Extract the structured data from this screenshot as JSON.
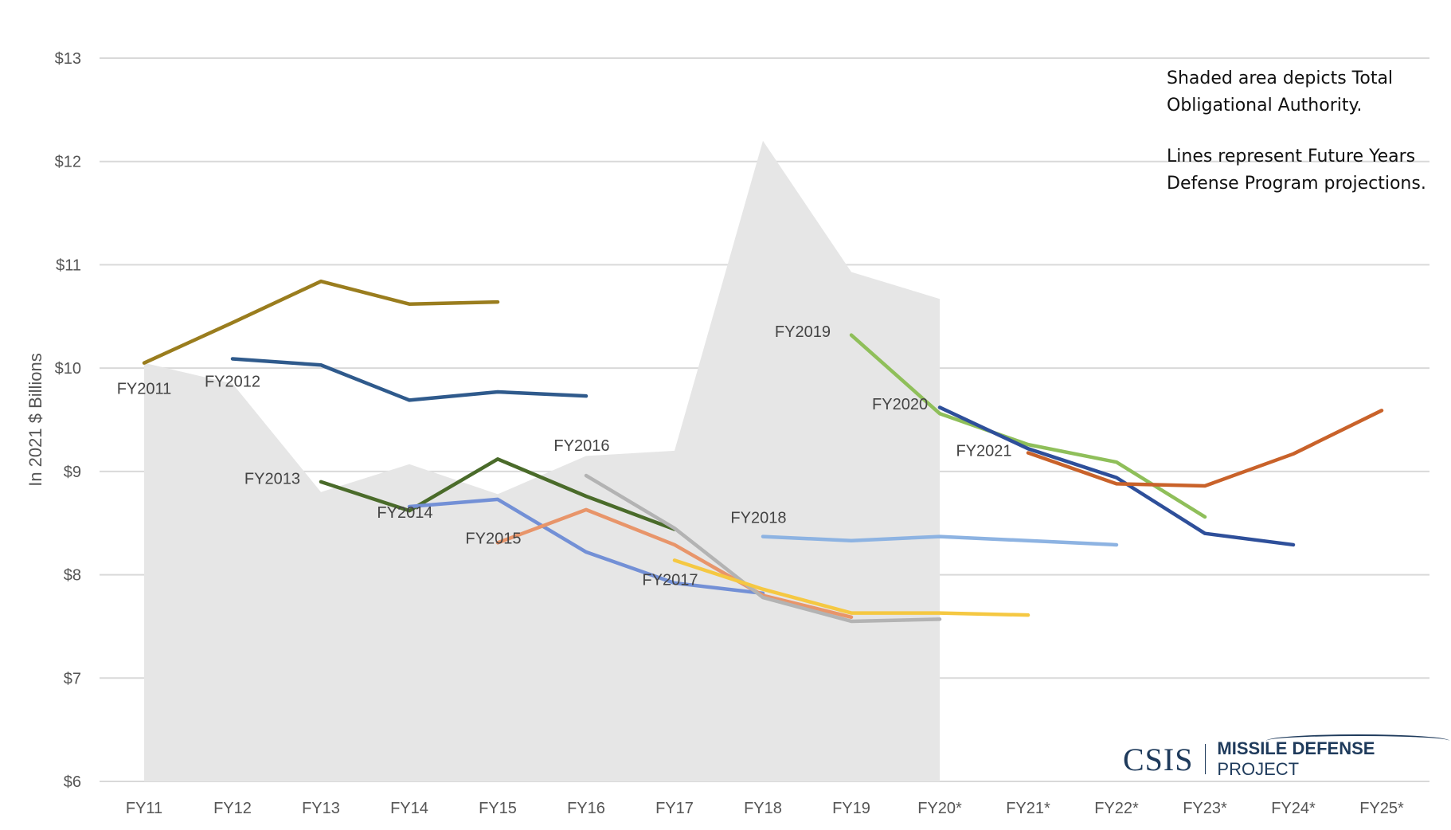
{
  "chart_data": {
    "type": "line",
    "ylabel": "In 2021 $ Billions",
    "ylim": [
      6,
      13
    ],
    "y_ticks": [
      "$6",
      "$7",
      "$8",
      "$9",
      "$10",
      "$11",
      "$12",
      "$13"
    ],
    "categories": [
      "FY11",
      "FY12",
      "FY13",
      "FY14",
      "FY15",
      "FY16",
      "FY17",
      "FY18",
      "FY19",
      "FY20*",
      "FY21*",
      "FY22*",
      "FY23*",
      "FY24*",
      "FY25*"
    ],
    "grid": true,
    "area": {
      "description_text": "Total Obligational Authority",
      "color": "#e6e6e6",
      "values": [
        10.05,
        9.85,
        8.8,
        9.07,
        8.78,
        9.15,
        9.2,
        12.2,
        10.93,
        10.67,
        null,
        null,
        null,
        null,
        null
      ]
    },
    "series": [
      {
        "name": "FY2011",
        "color": "#9a7d1e",
        "values": [
          10.05,
          10.44,
          10.84,
          10.62,
          10.64,
          null,
          null,
          null,
          null,
          null,
          null,
          null,
          null,
          null,
          null
        ]
      },
      {
        "name": "FY2012",
        "color": "#2f5a8c",
        "values": [
          null,
          10.09,
          10.03,
          9.69,
          9.77,
          9.73,
          null,
          null,
          null,
          null,
          null,
          null,
          null,
          null,
          null
        ]
      },
      {
        "name": "FY2013",
        "color": "#4a6b2a",
        "values": [
          null,
          null,
          8.9,
          8.62,
          9.12,
          8.76,
          8.44,
          null,
          null,
          null,
          null,
          null,
          null,
          null,
          null
        ]
      },
      {
        "name": "FY2014",
        "color": "#7390d6",
        "values": [
          null,
          null,
          null,
          8.66,
          8.73,
          8.22,
          7.92,
          7.82,
          null,
          null,
          null,
          null,
          null,
          null,
          null
        ]
      },
      {
        "name": "FY2015",
        "color": "#e8956a",
        "values": [
          null,
          null,
          null,
          null,
          8.31,
          8.63,
          8.29,
          7.8,
          7.59,
          null,
          null,
          null,
          null,
          null,
          null
        ]
      },
      {
        "name": "FY2016",
        "color": "#b3b3b3",
        "values": [
          null,
          null,
          null,
          null,
          null,
          8.96,
          8.45,
          7.78,
          7.55,
          7.57,
          null,
          null,
          null,
          null,
          null
        ]
      },
      {
        "name": "FY2017",
        "color": "#f5c842",
        "values": [
          null,
          null,
          null,
          null,
          null,
          null,
          8.14,
          7.86,
          7.63,
          7.63,
          7.61,
          null,
          null,
          null,
          null
        ]
      },
      {
        "name": "FY2018",
        "color": "#8db3e2",
        "values": [
          null,
          null,
          null,
          null,
          null,
          null,
          null,
          8.37,
          8.33,
          8.37,
          8.33,
          8.29,
          null,
          null,
          null
        ]
      },
      {
        "name": "FY2019",
        "color": "#8fbf5a",
        "values": [
          null,
          null,
          null,
          null,
          null,
          null,
          null,
          null,
          10.32,
          9.56,
          9.26,
          9.09,
          8.56,
          null,
          null
        ]
      },
      {
        "name": "FY2020",
        "color": "#2e4f9a",
        "values": [
          null,
          null,
          null,
          null,
          null,
          null,
          null,
          null,
          null,
          9.62,
          9.22,
          8.94,
          8.4,
          8.29,
          null
        ]
      },
      {
        "name": "FY2021",
        "color": "#c9622a",
        "values": [
          null,
          null,
          null,
          null,
          null,
          null,
          null,
          null,
          null,
          null,
          9.18,
          8.88,
          8.86,
          9.17,
          9.59
        ]
      }
    ],
    "series_label_positions": [
      "FY11",
      "FY12",
      "FY13",
      "FY14",
      "FY15",
      "FY16",
      "FY17",
      "FY18",
      "FY19",
      "FY20*",
      "FY21*"
    ]
  },
  "notes": {
    "line1": "Shaded area depicts Total Obligational Authority.",
    "line2": "Lines represent Future Years Defense Program projections."
  },
  "logo": {
    "csis": "CSIS",
    "bold": "MISSILE DEFENSE",
    "rest": "PROJECT"
  }
}
